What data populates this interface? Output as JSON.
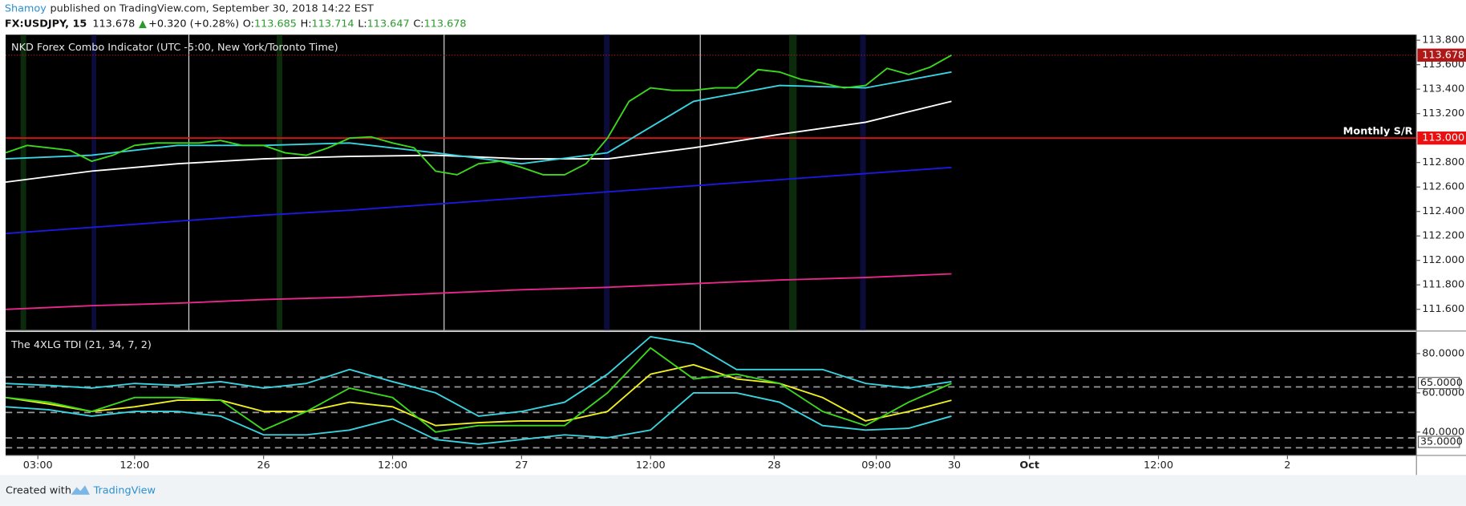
{
  "header": {
    "author": "Shamoy",
    "published": "published on TradingView.com, September 30, 2018 14:22 EST",
    "symbol": "FX:USDJPY, 15",
    "price": "113.678",
    "arrow": "▲",
    "change": "+0.320 (+0.28%)",
    "open_label": "O:",
    "open": "113.685",
    "high_label": "H:",
    "high": "113.714",
    "low_label": "L:",
    "low": "113.647",
    "close_label": "C:",
    "close": "113.678"
  },
  "footer": {
    "created": "Created with",
    "brand": "TradingView"
  },
  "chart_data": [
    {
      "type": "line",
      "title": "NKD Forex Combo Indicator (UTC -5:00, New York/Toronto Time)",
      "xlim": [
        0,
        525
      ],
      "ylim": [
        111.43,
        113.845
      ],
      "yticks": [
        {
          "value": 113.8,
          "label": "113.800"
        },
        {
          "value": 113.6,
          "label": "113.600"
        },
        {
          "value": 113.4,
          "label": "113.400"
        },
        {
          "value": 113.2,
          "label": "113.200"
        },
        {
          "value": 112.8,
          "label": "112.800"
        },
        {
          "value": 112.6,
          "label": "112.600"
        },
        {
          "value": 112.4,
          "label": "112.400"
        },
        {
          "value": 112.2,
          "label": "112.200"
        },
        {
          "value": 112.0,
          "label": "112.000"
        },
        {
          "value": 111.8,
          "label": "111.800"
        },
        {
          "value": 111.6,
          "label": "111.600"
        }
      ],
      "hlines": [
        {
          "value": 113.0,
          "value_label": "113.000",
          "label": "Monthly S/R",
          "color": "#e81010"
        }
      ],
      "last_price": {
        "value": 113.678,
        "label": "113.678",
        "color": "#b01818"
      },
      "series": [
        {
          "color": "#ffffff",
          "x": [
            0,
            32,
            64,
            96,
            128,
            160,
            192,
            224,
            256,
            288,
            320,
            352
          ],
          "values": [
            112.64,
            112.73,
            112.79,
            112.83,
            112.85,
            112.86,
            112.83,
            112.83,
            112.92,
            113.03,
            113.13,
            113.3
          ]
        },
        {
          "color": "#1a1ae0",
          "x": [
            0,
            32,
            64,
            96,
            128,
            160,
            192,
            224,
            256,
            288,
            320,
            352
          ],
          "values": [
            112.22,
            112.27,
            112.32,
            112.37,
            112.41,
            112.46,
            112.51,
            112.56,
            112.61,
            112.66,
            112.71,
            112.76
          ]
        },
        {
          "color": "#e8288c",
          "x": [
            0,
            32,
            64,
            96,
            128,
            160,
            192,
            224,
            256,
            288,
            320,
            352
          ],
          "values": [
            111.6,
            111.63,
            111.65,
            111.68,
            111.7,
            111.73,
            111.76,
            111.78,
            111.81,
            111.84,
            111.86,
            111.89
          ]
        },
        {
          "color": "#38d4e0",
          "x": [
            0,
            32,
            64,
            96,
            128,
            160,
            192,
            224,
            256,
            288,
            320,
            352
          ],
          "values": [
            112.83,
            112.86,
            112.94,
            112.94,
            112.96,
            112.88,
            112.79,
            112.88,
            113.3,
            113.43,
            113.41,
            113.54
          ]
        },
        {
          "color": "#3cd81c",
          "x": [
            0,
            8,
            16,
            24,
            32,
            40,
            48,
            56,
            64,
            72,
            80,
            88,
            96,
            104,
            112,
            120,
            128,
            136,
            144,
            152,
            160,
            168,
            176,
            184,
            192,
            200,
            208,
            216,
            224,
            232,
            240,
            248,
            256,
            264,
            272,
            280,
            288,
            296,
            304,
            312,
            320,
            328,
            336,
            344,
            352
          ],
          "values": [
            112.88,
            112.94,
            112.92,
            112.9,
            112.81,
            112.86,
            112.94,
            112.96,
            112.96,
            112.96,
            112.98,
            112.94,
            112.94,
            112.88,
            112.86,
            112.92,
            113.0,
            113.01,
            112.96,
            112.92,
            112.73,
            112.7,
            112.79,
            112.81,
            112.76,
            112.7,
            112.7,
            112.79,
            113.0,
            113.3,
            113.41,
            113.39,
            113.39,
            113.41,
            113.41,
            113.56,
            113.54,
            113.48,
            113.45,
            113.41,
            113.43,
            113.57,
            113.52,
            113.58,
            113.678
          ]
        }
      ]
    },
    {
      "type": "line",
      "title": "The 4XLG TDI (21, 34, 7, 2)",
      "xlim": [
        0,
        525
      ],
      "ylim": [
        28.1,
        91
      ],
      "yticks": [
        {
          "value": 80,
          "label": "80.0000"
        },
        {
          "value": 60,
          "label": "60.0000"
        },
        {
          "value": 40,
          "label": "40.0000"
        }
      ],
      "boxed_ticks": [
        {
          "value": 65,
          "label": "65.0000"
        },
        {
          "value": 35,
          "label": "35.0000"
        }
      ],
      "levels": [
        68,
        63,
        50,
        37,
        32
      ],
      "xticks": [
        {
          "value": 12,
          "label": "03:00"
        },
        {
          "value": 48,
          "label": "12:00"
        },
        {
          "value": 96,
          "label": "26"
        },
        {
          "value": 144,
          "label": "12:00"
        },
        {
          "value": 192,
          "label": "27"
        },
        {
          "value": 240,
          "label": "12:00"
        },
        {
          "value": 286,
          "label": "28"
        },
        {
          "value": 324,
          "label": "09:00"
        },
        {
          "value": 353,
          "label": "30"
        },
        {
          "value": 381,
          "label": "Oct"
        },
        {
          "value": 429,
          "label": "12:00"
        },
        {
          "value": 477,
          "label": "2"
        }
      ],
      "series": [
        {
          "color": "#38d4e0",
          "x": [
            0,
            16,
            32,
            48,
            64,
            80,
            96,
            112,
            128,
            144,
            160,
            176,
            192,
            208,
            224,
            240,
            256,
            272,
            288,
            304,
            320,
            336,
            352
          ],
          "values": [
            64.8,
            63.8,
            62.4,
            64.8,
            63.8,
            65.7,
            62.4,
            64.8,
            71.9,
            65.7,
            60.0,
            48.1,
            50.5,
            55.2,
            69.5,
            88.6,
            84.8,
            71.9,
            71.9,
            71.9,
            64.8,
            62.4,
            65.7
          ]
        },
        {
          "color": "#38d4e0",
          "x": [
            0,
            16,
            32,
            48,
            64,
            80,
            96,
            112,
            128,
            144,
            160,
            176,
            192,
            208,
            224,
            240,
            256,
            272,
            288,
            304,
            320,
            336,
            352
          ],
          "values": [
            52.9,
            51.4,
            48.1,
            50.5,
            50.5,
            48.1,
            38.6,
            38.6,
            41.0,
            46.7,
            36.2,
            33.8,
            36.2,
            38.6,
            37.1,
            41.0,
            60.0,
            60.0,
            55.2,
            43.3,
            41.0,
            41.9,
            48.1
          ]
        },
        {
          "color": "#f0f020",
          "x": [
            0,
            16,
            32,
            48,
            64,
            80,
            96,
            112,
            128,
            144,
            160,
            176,
            192,
            208,
            224,
            240,
            256,
            272,
            288,
            304,
            320,
            336,
            352
          ],
          "values": [
            57.6,
            54.3,
            50.5,
            52.9,
            56.2,
            56.2,
            50.5,
            50.5,
            55.2,
            52.9,
            43.3,
            44.8,
            45.7,
            45.7,
            50.5,
            69.5,
            74.3,
            67.1,
            64.8,
            57.6,
            45.7,
            50.5,
            56.2
          ]
        },
        {
          "color": "#3cd81c",
          "x": [
            0,
            16,
            32,
            48,
            64,
            80,
            96,
            112,
            128,
            144,
            160,
            176,
            192,
            208,
            224,
            240,
            256,
            272,
            288,
            304,
            320,
            336,
            352
          ],
          "values": [
            57.6,
            55.2,
            50.5,
            57.6,
            57.6,
            56.2,
            41.0,
            50.5,
            62.4,
            57.6,
            40.0,
            43.3,
            43.3,
            43.3,
            60.0,
            82.9,
            67.1,
            69.5,
            64.8,
            50.5,
            43.3,
            55.2,
            64.8
          ]
        }
      ]
    }
  ]
}
